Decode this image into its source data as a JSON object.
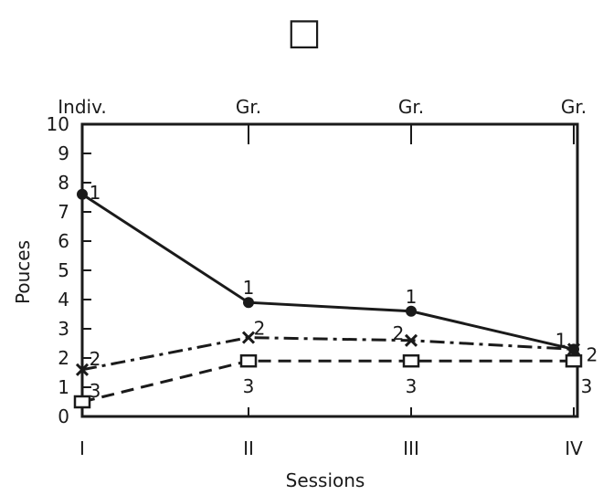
{
  "chart_data": {
    "type": "line",
    "header_symbol": "□",
    "categories": [
      "I",
      "II",
      "III",
      "IV"
    ],
    "top_labels": [
      "Indiv.",
      "Gr.",
      "Gr.",
      "Gr."
    ],
    "xlabel": "Sessions",
    "ylabel": "Pouces",
    "ylim": [
      0,
      10
    ],
    "yticks": [
      "0",
      "1",
      "2",
      "3",
      "4",
      "5",
      "6",
      "7",
      "8",
      "9",
      "10"
    ],
    "series": [
      {
        "name": "1",
        "marker": "circle",
        "style": "solid",
        "values": [
          7.6,
          3.9,
          3.6,
          2.3
        ],
        "point_labels": [
          "1",
          "1",
          "1",
          "1"
        ]
      },
      {
        "name": "2",
        "marker": "x",
        "style": "dashdot",
        "values": [
          1.6,
          2.7,
          2.6,
          2.3
        ],
        "point_labels": [
          "2",
          "2",
          "2",
          "2"
        ]
      },
      {
        "name": "3",
        "marker": "square",
        "style": "dashed",
        "values": [
          0.5,
          1.9,
          1.9,
          1.9
        ],
        "point_labels": [
          "3",
          "3",
          "3",
          "3"
        ]
      }
    ]
  }
}
